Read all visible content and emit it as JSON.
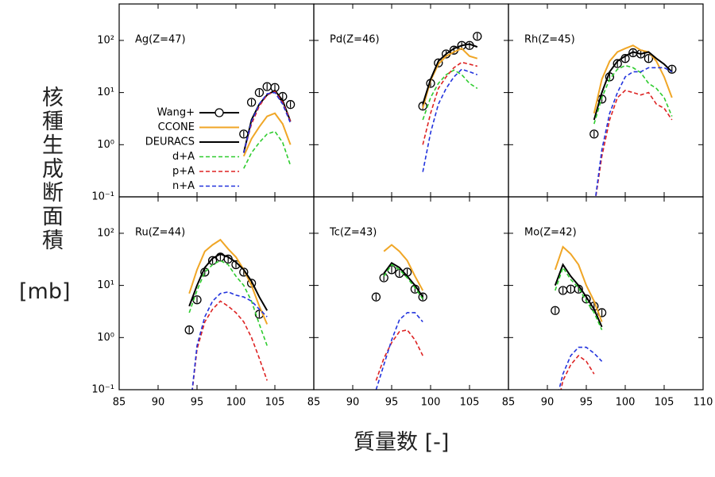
{
  "xlabel": "質量数 [-]",
  "ylabel": "核種生成断面積",
  "ylabel_unit": "[mb]",
  "chart_data": [
    {
      "type": "line",
      "title": "Ag(Z=47)",
      "xlim": [
        85,
        110
      ],
      "ylim": [
        0.1,
        500
      ],
      "ylog": true,
      "xticks": [
        85,
        90,
        95,
        100,
        105,
        110
      ],
      "yticks": [
        {
          "value": 0.1,
          "label": "10⁻¹"
        },
        {
          "value": 1,
          "label": "10⁰"
        },
        {
          "value": 10,
          "label": "10¹"
        },
        {
          "value": 100,
          "label": "10²"
        }
      ],
      "legend": "left",
      "series": [
        {
          "name": "Wang+",
          "color": "#000000",
          "marker": "circle",
          "x": [
            101,
            102,
            103,
            104,
            105,
            106,
            107
          ],
          "values": [
            1.6,
            6.5,
            10,
            13,
            12.5,
            8.4,
            5.9
          ]
        },
        {
          "name": "CCONE",
          "color": "#f0a626",
          "x": [
            101,
            102,
            103,
            104,
            105,
            106,
            107
          ],
          "values": [
            0.6,
            1.3,
            2.2,
            3.5,
            4,
            2.5,
            1
          ]
        },
        {
          "name": "DEURACS",
          "color": "#000000",
          "x": [
            101,
            102,
            103,
            104,
            105,
            106,
            107
          ],
          "values": [
            0.7,
            3,
            6,
            9,
            11,
            7,
            2.8
          ]
        },
        {
          "name": "d+A",
          "color": "#2ecc2e",
          "dash": true,
          "x": [
            101,
            102,
            103,
            104,
            105,
            106,
            107
          ],
          "values": [
            0.35,
            0.7,
            1.1,
            1.6,
            1.8,
            1.1,
            0.4
          ]
        },
        {
          "name": "p+A",
          "color": "#dd2222",
          "dash": true,
          "x": [
            101,
            102,
            103,
            104,
            105,
            106,
            107
          ],
          "values": [
            0.7,
            2.5,
            5.5,
            9,
            10.5,
            6.5,
            2.8
          ]
        },
        {
          "name": "n+A",
          "color": "#2233dd",
          "dash": true,
          "x": [
            101,
            102,
            103,
            104,
            105,
            106,
            107
          ],
          "values": [
            0.7,
            2.8,
            6,
            9.5,
            10,
            6,
            2.6
          ]
        }
      ]
    },
    {
      "type": "line",
      "title": "Pd(Z=46)",
      "xlim": [
        85,
        110
      ],
      "ylim": [
        0.1,
        500
      ],
      "ylog": true,
      "xticks": [
        85,
        90,
        95,
        100,
        105,
        110
      ],
      "yticks": [
        0.1,
        1,
        10,
        100
      ],
      "series": [
        {
          "color": "#000000",
          "marker": "circle",
          "x": [
            99,
            100,
            101,
            102,
            103,
            104,
            105,
            106
          ],
          "values": [
            5.5,
            15,
            37,
            55,
            65,
            80,
            80,
            120
          ]
        },
        {
          "color": "#f0a626",
          "x": [
            99,
            100,
            101,
            102,
            103,
            104,
            105,
            106
          ],
          "values": [
            5,
            17,
            35,
            50,
            60,
            70,
            50,
            45
          ]
        },
        {
          "color": "#000000",
          "x": [
            99,
            100,
            101,
            102,
            103,
            104,
            105,
            106
          ],
          "values": [
            6,
            18,
            40,
            55,
            70,
            80,
            85,
            75
          ]
        },
        {
          "color": "#2ecc2e",
          "dash": true,
          "x": [
            99,
            100,
            101,
            102,
            103,
            104,
            105,
            106
          ],
          "values": [
            3,
            8,
            15,
            22,
            27,
            22,
            15,
            12
          ]
        },
        {
          "color": "#dd2222",
          "dash": true,
          "x": [
            99,
            100,
            101,
            102,
            103,
            104,
            105,
            106
          ],
          "values": [
            1,
            4,
            12,
            20,
            30,
            38,
            35,
            32
          ]
        },
        {
          "color": "#2233dd",
          "dash": true,
          "x": [
            99,
            100,
            101,
            102,
            103,
            104,
            105,
            106
          ],
          "values": [
            0.3,
            1.7,
            6,
            12,
            20,
            28,
            25,
            22
          ]
        }
      ]
    },
    {
      "type": "line",
      "title": "Rh(Z=45)",
      "xlim": [
        85,
        110
      ],
      "ylim": [
        0.1,
        500
      ],
      "ylog": true,
      "xticks": [
        85,
        90,
        95,
        100,
        105,
        110
      ],
      "yticks": [
        0.1,
        1,
        10,
        100
      ],
      "series": [
        {
          "color": "#000000",
          "marker": "circle",
          "x": [
            96,
            97,
            98,
            99,
            100,
            101,
            102,
            103,
            106
          ],
          "values": [
            1.6,
            7.5,
            20,
            36,
            45,
            58,
            55,
            45,
            28
          ]
        },
        {
          "color": "#f0a626",
          "x": [
            96,
            97,
            98,
            99,
            100,
            101,
            102,
            103,
            104,
            105,
            106
          ],
          "values": [
            4,
            18,
            40,
            60,
            70,
            80,
            65,
            60,
            40,
            20,
            8
          ]
        },
        {
          "color": "#000000",
          "x": [
            96,
            97,
            98,
            99,
            100,
            101,
            102,
            103,
            104,
            105,
            106
          ],
          "values": [
            3,
            10,
            25,
            40,
            50,
            60,
            55,
            60,
            45,
            35,
            25
          ]
        },
        {
          "color": "#2ecc2e",
          "dash": true,
          "x": [
            96,
            97,
            98,
            99,
            100,
            101,
            102,
            103,
            104,
            105,
            106
          ],
          "values": [
            2.5,
            8,
            18,
            28,
            33,
            30,
            24,
            15,
            12,
            8,
            3.5
          ]
        },
        {
          "color": "#dd2222",
          "dash": true,
          "x": [
            96,
            97,
            98,
            99,
            100,
            101,
            102,
            103,
            104,
            105,
            106
          ],
          "values": [
            0.06,
            0.6,
            3,
            8,
            11,
            10,
            9,
            10,
            6,
            5,
            3
          ]
        },
        {
          "color": "#2233dd",
          "dash": true,
          "x": [
            96,
            97,
            98,
            99,
            100,
            101,
            102,
            103,
            104,
            105,
            106
          ],
          "values": [
            0.06,
            0.8,
            4,
            10,
            20,
            25,
            25,
            30,
            30,
            30,
            25
          ]
        }
      ]
    },
    {
      "type": "line",
      "title": "Ru(Z=44)",
      "xlim": [
        85,
        110
      ],
      "ylim": [
        0.1,
        500
      ],
      "ylog": true,
      "xticks": [
        85,
        90,
        95,
        100,
        105
      ],
      "yticks": [
        {
          "value": 0.1,
          "label": "10⁻¹"
        },
        {
          "value": 1,
          "label": "10⁰"
        },
        {
          "value": 10,
          "label": "10¹"
        },
        {
          "value": 100,
          "label": "10²"
        }
      ],
      "series": [
        {
          "color": "#000000",
          "marker": "circle",
          "x": [
            94,
            95,
            96,
            97,
            98,
            99,
            100,
            101,
            102,
            103
          ],
          "values": [
            1.4,
            5.3,
            18,
            30,
            35,
            32,
            25,
            18,
            11,
            2.8
          ]
        },
        {
          "color": "#f0a626",
          "x": [
            94,
            95,
            96,
            97,
            98,
            99,
            100,
            101,
            102,
            103,
            104
          ],
          "values": [
            7,
            20,
            45,
            60,
            75,
            50,
            35,
            20,
            10,
            4,
            1.8
          ]
        },
        {
          "color": "#000000",
          "x": [
            94,
            95,
            96,
            97,
            98,
            99,
            100,
            101,
            102,
            103,
            104
          ],
          "values": [
            4,
            10,
            22,
            33,
            40,
            35,
            28,
            20,
            12,
            6,
            3.3
          ]
        },
        {
          "color": "#2ecc2e",
          "dash": true,
          "x": [
            94,
            95,
            96,
            97,
            98,
            99,
            100,
            101,
            102,
            103,
            104
          ],
          "values": [
            3,
            8,
            18,
            25,
            30,
            25,
            15,
            10,
            5,
            1.8,
            0.7
          ]
        },
        {
          "color": "#dd2222",
          "dash": true,
          "x": [
            94,
            95,
            96,
            97,
            98,
            99,
            100,
            101,
            102,
            103,
            104
          ],
          "values": [
            0.03,
            0.6,
            2,
            3.5,
            5,
            4,
            3,
            2,
            1,
            0.4,
            0.15
          ]
        },
        {
          "color": "#2233dd",
          "dash": true,
          "x": [
            94,
            95,
            96,
            97,
            98,
            99,
            100,
            101,
            102,
            103,
            104
          ],
          "values": [
            0.03,
            0.7,
            2.5,
            5,
            7,
            7.5,
            6.5,
            6,
            5,
            3.5,
            2.5
          ]
        }
      ]
    },
    {
      "type": "line",
      "title": "Tc(Z=43)",
      "xlim": [
        85,
        110
      ],
      "ylim": [
        0.1,
        500
      ],
      "ylog": true,
      "xticks": [
        85,
        90,
        95,
        100,
        105
      ],
      "yticks": [
        0.1,
        1,
        10,
        100
      ],
      "series": [
        {
          "color": "#000000",
          "marker": "circle",
          "x": [
            93,
            94,
            95,
            96,
            97,
            98,
            99
          ],
          "values": [
            6,
            14,
            20,
            17,
            18,
            8.5,
            6
          ]
        },
        {
          "color": "#f0a626",
          "x": [
            94,
            95,
            96,
            97,
            98,
            99
          ],
          "values": [
            45,
            60,
            45,
            30,
            15,
            8
          ]
        },
        {
          "color": "#000000",
          "x": [
            94,
            95,
            96,
            97,
            98,
            99
          ],
          "values": [
            17,
            27,
            22,
            15,
            10,
            6
          ]
        },
        {
          "color": "#2ecc2e",
          "dash": true,
          "x": [
            94,
            95,
            96,
            97,
            98,
            99
          ],
          "values": [
            15,
            25,
            20,
            14,
            9,
            5.5
          ]
        },
        {
          "color": "#dd2222",
          "dash": true,
          "x": [
            93,
            94,
            95,
            96,
            97,
            98,
            99
          ],
          "values": [
            0.15,
            0.4,
            0.8,
            1.3,
            1.4,
            0.9,
            0.45
          ]
        },
        {
          "color": "#2233dd",
          "dash": true,
          "x": [
            93,
            94,
            95,
            96,
            97,
            98,
            99
          ],
          "values": [
            0.1,
            0.3,
            0.9,
            2.2,
            3,
            3,
            2
          ]
        }
      ]
    },
    {
      "type": "line",
      "title": "Mo(Z=42)",
      "xlim": [
        85,
        110
      ],
      "ylim": [
        0.1,
        500
      ],
      "ylog": true,
      "xticks": [
        85,
        90,
        95,
        100,
        105,
        110
      ],
      "yticks": [
        0.1,
        1,
        10,
        100
      ],
      "series": [
        {
          "color": "#000000",
          "marker": "circle",
          "x": [
            91,
            92,
            93,
            94,
            95,
            96,
            97
          ],
          "values": [
            3.3,
            8,
            8.5,
            8.5,
            5.5,
            4,
            3
          ]
        },
        {
          "color": "#f0a626",
          "x": [
            91,
            92,
            93,
            94,
            95,
            96,
            97
          ],
          "values": [
            20,
            55,
            40,
            25,
            10,
            5,
            2
          ]
        },
        {
          "color": "#000000",
          "x": [
            91,
            92,
            93,
            94,
            95,
            96,
            97
          ],
          "values": [
            10,
            25,
            15,
            10,
            6,
            3.5,
            1.6
          ]
        },
        {
          "color": "#2ecc2e",
          "dash": true,
          "x": [
            91,
            92,
            93,
            94,
            95,
            96,
            97
          ],
          "values": [
            8,
            22,
            13,
            9,
            5,
            3,
            1.4
          ]
        },
        {
          "color": "#dd2222",
          "dash": true,
          "x": [
            91,
            92,
            93,
            94,
            95,
            96
          ],
          "values": [
            0.03,
            0.15,
            0.3,
            0.45,
            0.35,
            0.2
          ]
        },
        {
          "color": "#2233dd",
          "dash": true,
          "x": [
            91,
            92,
            93,
            94,
            95,
            96,
            97
          ],
          "values": [
            0.05,
            0.2,
            0.45,
            0.65,
            0.65,
            0.5,
            0.35
          ]
        }
      ]
    }
  ]
}
